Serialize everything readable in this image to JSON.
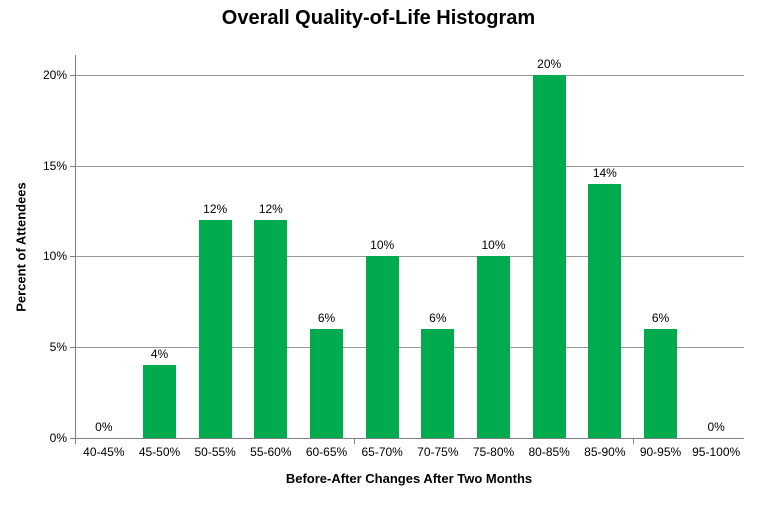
{
  "chart_data": {
    "type": "bar",
    "title": "Overall Quality-of-Life Histogram",
    "xlabel": "Before-After Changes After Two Months",
    "ylabel": "Percent of Attendees",
    "categories": [
      "40-45%",
      "45-50%",
      "50-55%",
      "55-60%",
      "60-65%",
      "65-70%",
      "70-75%",
      "75-80%",
      "80-85%",
      "85-90%",
      "90-95%",
      "95-100%"
    ],
    "values": [
      0,
      4,
      12,
      12,
      6,
      10,
      6,
      10,
      20,
      14,
      6,
      0
    ],
    "data_labels": [
      "0%",
      "4%",
      "12%",
      "12%",
      "6%",
      "10%",
      "6%",
      "10%",
      "20%",
      "14%",
      "6%",
      "0%"
    ],
    "y_ticks": [
      "0%",
      "5%",
      "10%",
      "15%",
      "20%"
    ],
    "y_tick_values": [
      0,
      5,
      10,
      15,
      20
    ],
    "ylim": [
      0,
      21.1
    ],
    "grid": true,
    "legend": "none",
    "bar_color": "#00AB4E",
    "grid_color": "#999999",
    "axis_color": "#808080",
    "text_color": "#000000"
  }
}
